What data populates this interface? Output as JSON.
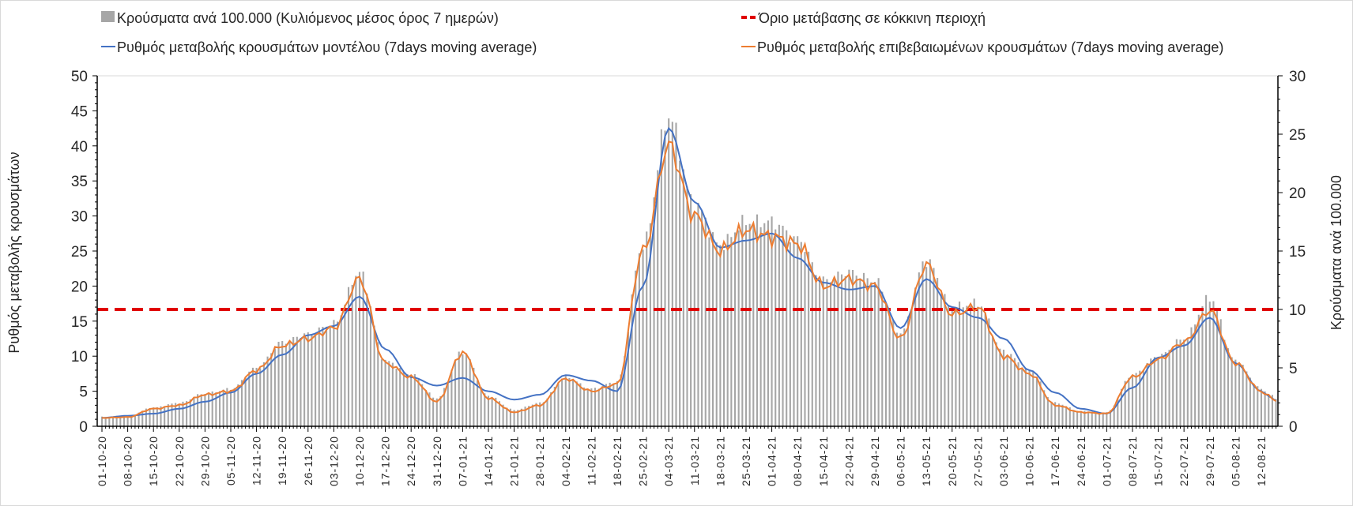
{
  "chart_data": {
    "type": "bar+line",
    "title": "",
    "legend": [
      {
        "key": "bars",
        "label": "Κρούσματα ανά 100.000 (Κυλιόμενος μέσος όρος 7 ημερών)",
        "color": "#a6a6a6"
      },
      {
        "key": "threshold",
        "label": "Όριο μετάβασης σε κόκκινη περιοχή",
        "color": "#e00000"
      },
      {
        "key": "model",
        "label": "Ρυθμός μεταβολής κρουσμάτων μοντέλου (7days moving average)",
        "color": "#4472c4"
      },
      {
        "key": "confirmed",
        "label": "Ρυθμός μεταβολής επιβεβαιωμένων κρουσμάτων (7days moving average)",
        "color": "#ed7d31"
      }
    ],
    "legend_position": "top",
    "ylabel_left": "Ρυθμός μεταβολής κρουσμάτων",
    "ylabel_right": "Κρούσματα ανά 100.000",
    "ylim_left": [
      0,
      50
    ],
    "ylim_right": [
      0,
      30
    ],
    "yticks_left": [
      "0",
      "5",
      "10",
      "15",
      "20",
      "25",
      "30",
      "35",
      "40",
      "45",
      "50"
    ],
    "yticks_right": [
      "0",
      "5",
      "10",
      "15",
      "20",
      "25",
      "30"
    ],
    "threshold_right_axis": 10,
    "x_dates_weekly": [
      "01-10-20",
      "08-10-20",
      "15-10-20",
      "22-10-20",
      "29-10-20",
      "05-11-20",
      "12-11-20",
      "19-11-20",
      "26-11-20",
      "03-12-20",
      "10-12-20",
      "17-12-20",
      "24-12-20",
      "31-12-20",
      "07-01-21",
      "14-01-21",
      "21-01-21",
      "28-01-21",
      "04-02-21",
      "11-02-21",
      "18-02-21",
      "25-02-21",
      "04-03-21",
      "11-03-21",
      "18-03-21",
      "25-03-21",
      "01-04-21",
      "08-04-21",
      "15-04-21",
      "22-04-21",
      "29-04-21",
      "06-05-21",
      "13-05-21",
      "20-05-21",
      "27-05-21",
      "03-06-21",
      "10-06-21",
      "17-06-21",
      "24-06-21",
      "01-07-21",
      "08-07-21",
      "15-07-21",
      "22-07-21",
      "29-07-21",
      "05-08-21",
      "12-08-21"
    ],
    "series": [
      {
        "name": "model",
        "axis": "left",
        "values": [
          1.2,
          1.5,
          1.8,
          2.5,
          3.5,
          4.8,
          7.5,
          10.2,
          13,
          14.3,
          18.5,
          11,
          7,
          5.8,
          6.9,
          5,
          3.8,
          4.5,
          7.3,
          6.5,
          5,
          20,
          42.5,
          32,
          25.5,
          26.5,
          27.5,
          24,
          20.5,
          19.5,
          20,
          14,
          21,
          17,
          15.5,
          12.5,
          8,
          4.8,
          2.5,
          1.8,
          5.5,
          9.8,
          11.5,
          15.5,
          9,
          5
        ]
      },
      {
        "name": "confirmed",
        "axis": "left",
        "values": [
          1.2,
          1.3,
          2.5,
          3,
          4.5,
          5,
          8,
          11.5,
          12.5,
          14,
          21,
          9,
          7,
          3.5,
          10.5,
          4,
          2,
          3,
          6.8,
          5,
          6,
          25,
          40,
          30,
          25,
          28,
          27,
          26,
          20,
          21,
          20,
          12.5,
          23,
          16,
          17,
          10,
          7.5,
          3,
          2,
          1.8,
          7,
          9.5,
          12,
          16.5,
          9,
          5
        ]
      },
      {
        "name": "cases_per_100k",
        "axis": "right",
        "values": [
          0.8,
          0.9,
          1.6,
          2,
          2.8,
          3.2,
          5,
          7.2,
          7.9,
          8.8,
          13.2,
          5.6,
          4.4,
          2.4,
          6.4,
          2.6,
          1.4,
          2,
          4.2,
          3.2,
          3.8,
          15.5,
          26.5,
          19,
          15.5,
          17.5,
          17.5,
          16,
          12.5,
          13.2,
          12.5,
          8,
          14.2,
          10.2,
          10.5,
          6.4,
          4.8,
          2,
          1.3,
          1.2,
          4.4,
          6,
          7.5,
          11,
          5.6,
          3.2
        ]
      }
    ]
  }
}
